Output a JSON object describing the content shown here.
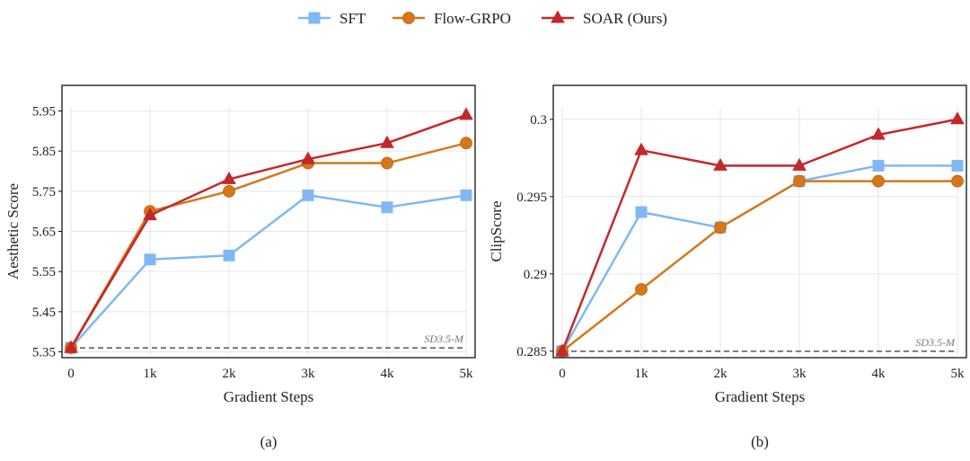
{
  "legend": {
    "items": [
      {
        "name": "SFT",
        "color": "#7fb8f5",
        "marker": "square"
      },
      {
        "name": "Flow-GRPO",
        "color": "#d7771a",
        "marker": "circle"
      },
      {
        "name": "SOAR (Ours)",
        "color": "#c4282b",
        "marker": "triangle"
      }
    ]
  },
  "chart_data": [
    {
      "type": "line",
      "caption": "(a)",
      "xlabel": "Gradient Steps",
      "ylabel": "Aesthetic Score",
      "categories": [
        "0",
        "1k",
        "2k",
        "3k",
        "4k",
        "5k"
      ],
      "ylim": [
        5.34,
        5.96
      ],
      "yticks": [
        5.35,
        5.45,
        5.55,
        5.65,
        5.75,
        5.85,
        5.95
      ],
      "ytick_labels": [
        "5.35",
        "5.45",
        "5.55",
        "5.65",
        "5.75",
        "5.85",
        "5.95"
      ],
      "grid": true,
      "baseline": {
        "label": "SD3.5-M",
        "value": 5.36
      },
      "series": [
        {
          "name": "SFT",
          "values": [
            5.36,
            5.58,
            5.59,
            5.74,
            5.71,
            5.74
          ]
        },
        {
          "name": "Flow-GRPO",
          "values": [
            5.36,
            5.7,
            5.75,
            5.82,
            5.82,
            5.87
          ]
        },
        {
          "name": "SOAR (Ours)",
          "values": [
            5.36,
            5.69,
            5.78,
            5.83,
            5.87,
            5.94
          ]
        }
      ]
    },
    {
      "type": "line",
      "caption": "(b)",
      "xlabel": "Gradient Steps",
      "ylabel": "ClipScore",
      "categories": [
        "0",
        "1k",
        "2k",
        "3k",
        "4k",
        "5k"
      ],
      "ylim": [
        0.2847,
        0.3008
      ],
      "yticks": [
        0.285,
        0.29,
        0.295,
        0.3
      ],
      "ytick_labels": [
        "0.285",
        "0.29",
        "0.295",
        "0.3"
      ],
      "grid": true,
      "baseline": {
        "label": "SD3.5-M",
        "value": 0.285
      },
      "series": [
        {
          "name": "SFT",
          "values": [
            0.285,
            0.294,
            0.293,
            0.296,
            0.297,
            0.297
          ]
        },
        {
          "name": "Flow-GRPO",
          "values": [
            0.285,
            0.289,
            0.293,
            0.296,
            0.296,
            0.296
          ]
        },
        {
          "name": "SOAR (Ours)",
          "values": [
            0.285,
            0.298,
            0.297,
            0.297,
            0.299,
            0.3
          ]
        }
      ]
    }
  ]
}
